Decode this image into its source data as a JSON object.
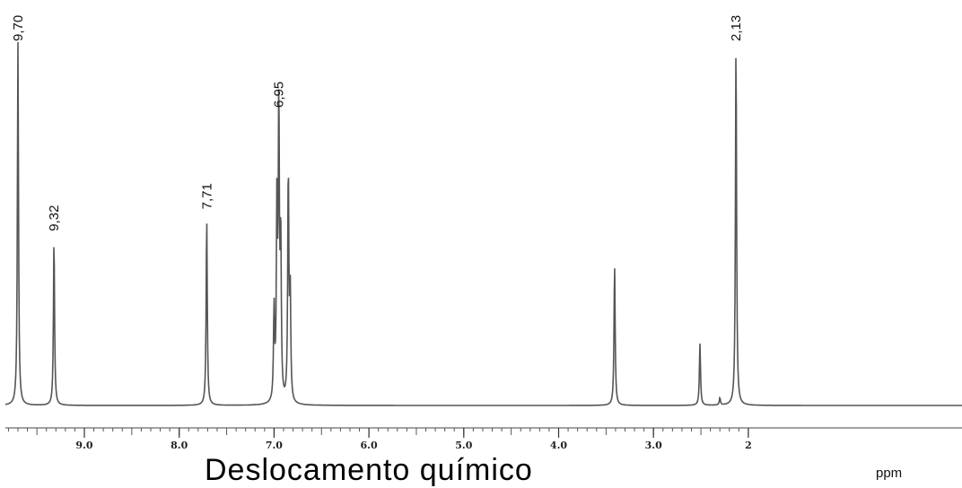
{
  "chart_data": {
    "type": "line",
    "title": "",
    "xlabel": "Deslocamento químico",
    "unit": "ppm",
    "xlim": [
      9.9,
      2.1
    ],
    "x_reversed": true,
    "grid": false,
    "ticks": [
      {
        "value": 9.0,
        "label": "9.0"
      },
      {
        "value": 8.0,
        "label": "8.0"
      },
      {
        "value": 7.0,
        "label": "7.0"
      },
      {
        "value": 6.0,
        "label": "6.0"
      },
      {
        "value": 5.0,
        "label": "5.0"
      },
      {
        "value": 4.0,
        "label": "4.0"
      },
      {
        "value": 3.0,
        "label": "3.0"
      },
      {
        "value": 2.0,
        "label": "2"
      }
    ],
    "peaks": [
      {
        "ppm": 9.7,
        "intensity": 1.0,
        "label": "9,70"
      },
      {
        "ppm": 9.32,
        "intensity": 0.46,
        "label": "9,32"
      },
      {
        "ppm": 7.71,
        "intensity": 0.52,
        "label": "7,71"
      },
      {
        "ppm": 7.0,
        "intensity": 0.25,
        "label": ""
      },
      {
        "ppm": 6.97,
        "intensity": 0.52,
        "label": ""
      },
      {
        "ppm": 6.95,
        "intensity": 0.8,
        "label": "6,95"
      },
      {
        "ppm": 6.93,
        "intensity": 0.44,
        "label": ""
      },
      {
        "ppm": 6.85,
        "intensity": 0.64,
        "label": ""
      },
      {
        "ppm": 6.83,
        "intensity": 0.3,
        "label": ""
      },
      {
        "ppm": 3.41,
        "intensity": 0.39,
        "label": ""
      },
      {
        "ppm": 2.51,
        "intensity": 0.17,
        "label": ""
      },
      {
        "ppm": 2.3,
        "intensity": 0.02,
        "label": ""
      },
      {
        "ppm": 2.13,
        "intensity": 1.0,
        "label": "2,13"
      }
    ]
  }
}
